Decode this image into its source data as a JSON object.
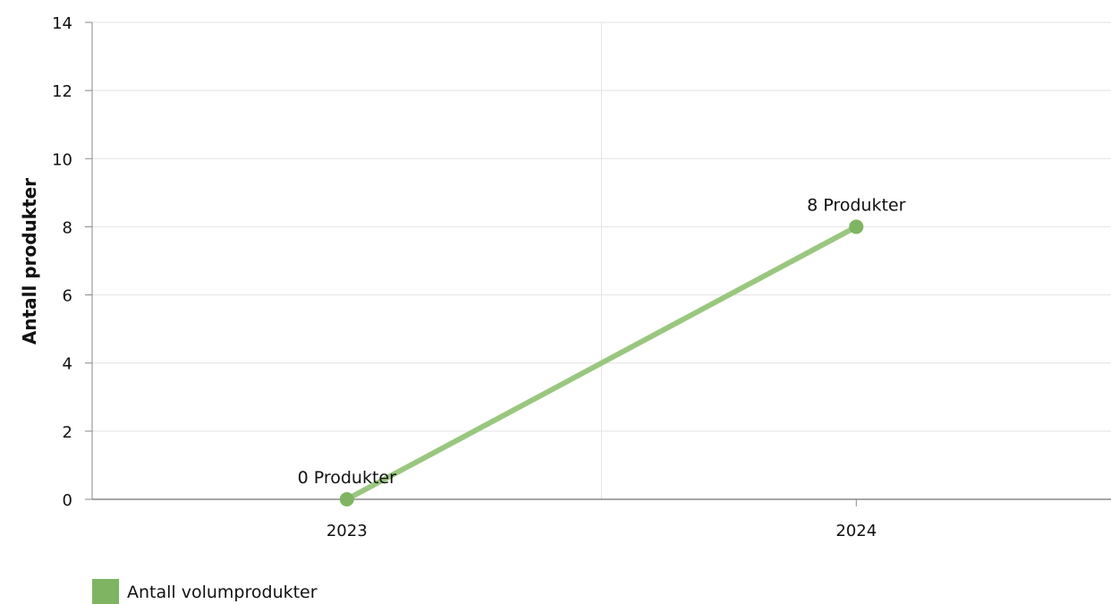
{
  "chart_data": {
    "type": "line",
    "title": "",
    "xlabel": "",
    "ylabel": "Antall produkter",
    "categories": [
      "2023",
      "2024"
    ],
    "ylim": [
      0,
      14
    ],
    "yticks": [
      0,
      2,
      4,
      6,
      8,
      10,
      12,
      14
    ],
    "grid": true,
    "legend_position": "bottom-left",
    "series": [
      {
        "name": "Antall volumprodukter",
        "values": [
          0,
          8
        ],
        "data_labels": [
          "0 Produkter",
          "8 Produkter"
        ],
        "line_color": "#9ac77f",
        "marker_color": "#7fb562"
      }
    ]
  }
}
